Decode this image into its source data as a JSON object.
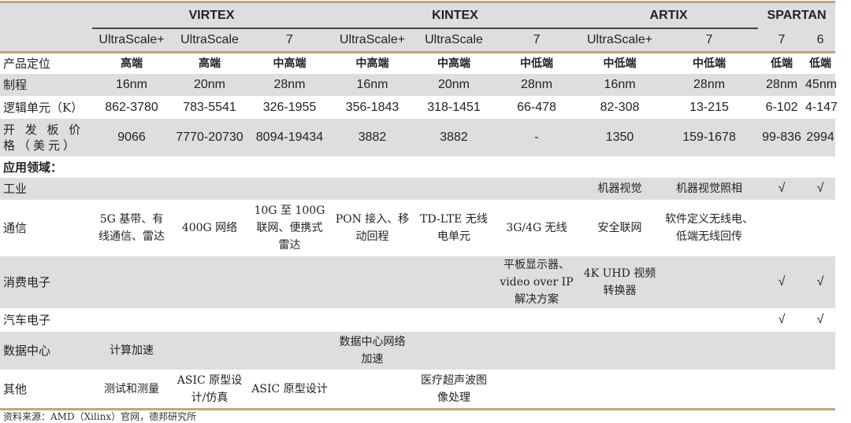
{
  "header": {
    "families": [
      {
        "label": "VIRTEX",
        "span": 3
      },
      {
        "label": "KINTEX",
        "span": 3
      },
      {
        "label": "ARTIX",
        "span": 2
      },
      {
        "label": "SPARTAN",
        "span": 2
      }
    ],
    "series": [
      "UltraScale+",
      "UltraScale",
      "7",
      "UltraScale+",
      "UltraScale",
      "7",
      "UltraScale+",
      "7",
      "7",
      "6"
    ]
  },
  "spec_rows": [
    {
      "label": "产品定位",
      "cells": [
        "高端",
        "高端",
        "中高端",
        "中高端",
        "中高端",
        "中低端",
        "中低端",
        "中低端",
        "低端",
        "低端"
      ]
    },
    {
      "label": "制程",
      "cells": [
        "16nm",
        "20nm",
        "28nm",
        "16nm",
        "20nm",
        "28nm",
        "16nm",
        "28nm",
        "28nm",
        "45nm"
      ]
    },
    {
      "label": "逻辑单元（K）",
      "cells": [
        "862-3780",
        "783-5541",
        "326-1955",
        "356-1843",
        "318-1451",
        "66-478",
        "82-308",
        "13-215",
        "6-102",
        "4-147"
      ]
    },
    {
      "label": "开 发 板 价 格（美元）",
      "cells": [
        "9066",
        "7770-20730",
        "8094-19434",
        "3882",
        "3882",
        "-",
        "1350",
        "159-1678",
        "99-836",
        "2994"
      ]
    }
  ],
  "application_heading": "应用领域：",
  "application_rows": [
    {
      "label": "工业",
      "cells": [
        "",
        "",
        "",
        "",
        "",
        "",
        "机器视觉",
        "机器视觉照相",
        "√",
        "√"
      ]
    },
    {
      "label": "通信",
      "cells": [
        "5G 基带、有线通信、雷达",
        "400G 网络",
        "10G 至 100G 联网、便携式雷达",
        "PON 接入、移动回程",
        "TD-LTE 无线电单元",
        "3G/4G 无线",
        "安全联网",
        "软件定义无线电、低端无线回传",
        "",
        ""
      ]
    },
    {
      "label": "消费电子",
      "cells": [
        "",
        "",
        "",
        "",
        "",
        "平板显示器、video over IP 解决方案",
        "4K UHD 视频转换器",
        "",
        "√",
        "√"
      ]
    },
    {
      "label": "汽车电子",
      "cells": [
        "",
        "",
        "",
        "",
        "",
        "",
        "",
        "",
        "√",
        "√"
      ]
    },
    {
      "label": "数据中心",
      "cells": [
        "计算加速",
        "",
        "",
        "数据中心网络加速",
        "",
        "",
        "",
        "",
        "",
        ""
      ]
    },
    {
      "label": "其他",
      "cells": [
        "测试和测量",
        "ASIC 原型设计/仿真",
        "ASIC 原型设计",
        "",
        "医疗超声波图像处理",
        "",
        "",
        "",
        "",
        ""
      ]
    }
  ],
  "source": "资料来源：AMD（Xilinx）官网，德邦研究所"
}
